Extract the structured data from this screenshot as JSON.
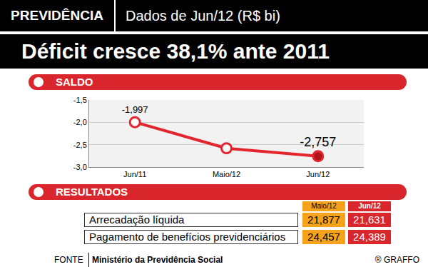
{
  "header": {
    "section": "PREVIDÊNCIA",
    "subtitle": "Dados de Jun/12 (R$ bi)",
    "title": "Déficit cresce 38,1% ante 2011"
  },
  "chart_data": {
    "type": "line",
    "title": "SALDO",
    "categories": [
      "Jun/11",
      "Maio/12",
      "Jun/12"
    ],
    "values": [
      -1.997,
      -2.58,
      -2.757
    ],
    "value_labels": [
      "-1,997",
      null,
      "-2,757"
    ],
    "data_labels": true,
    "color": "#e3262d",
    "marker": "circle",
    "ylim": [
      -3.0,
      -1.5
    ],
    "yticks": [
      {
        "value": -3.0,
        "label": "-3,0"
      },
      {
        "value": -2.5,
        "label": "-2,5"
      },
      {
        "value": -2.0,
        "label": "-2,0"
      },
      {
        "value": -1.5,
        "label": "-1,5"
      }
    ],
    "grid": true
  },
  "table": {
    "title": "RESULTADOS",
    "columns": [
      "Maio/12",
      "Jun/12"
    ],
    "rows": [
      {
        "label": "Arrecadação líquida",
        "values": [
          "21,877",
          "21,631"
        ]
      },
      {
        "label": "Pagamento de benefícios previdenciários",
        "values": [
          "24,457",
          "24,389"
        ]
      }
    ]
  },
  "footer": {
    "source_label": "FONTE",
    "source": "Ministério da Previdência Social",
    "credit": "® GRAFFO"
  }
}
